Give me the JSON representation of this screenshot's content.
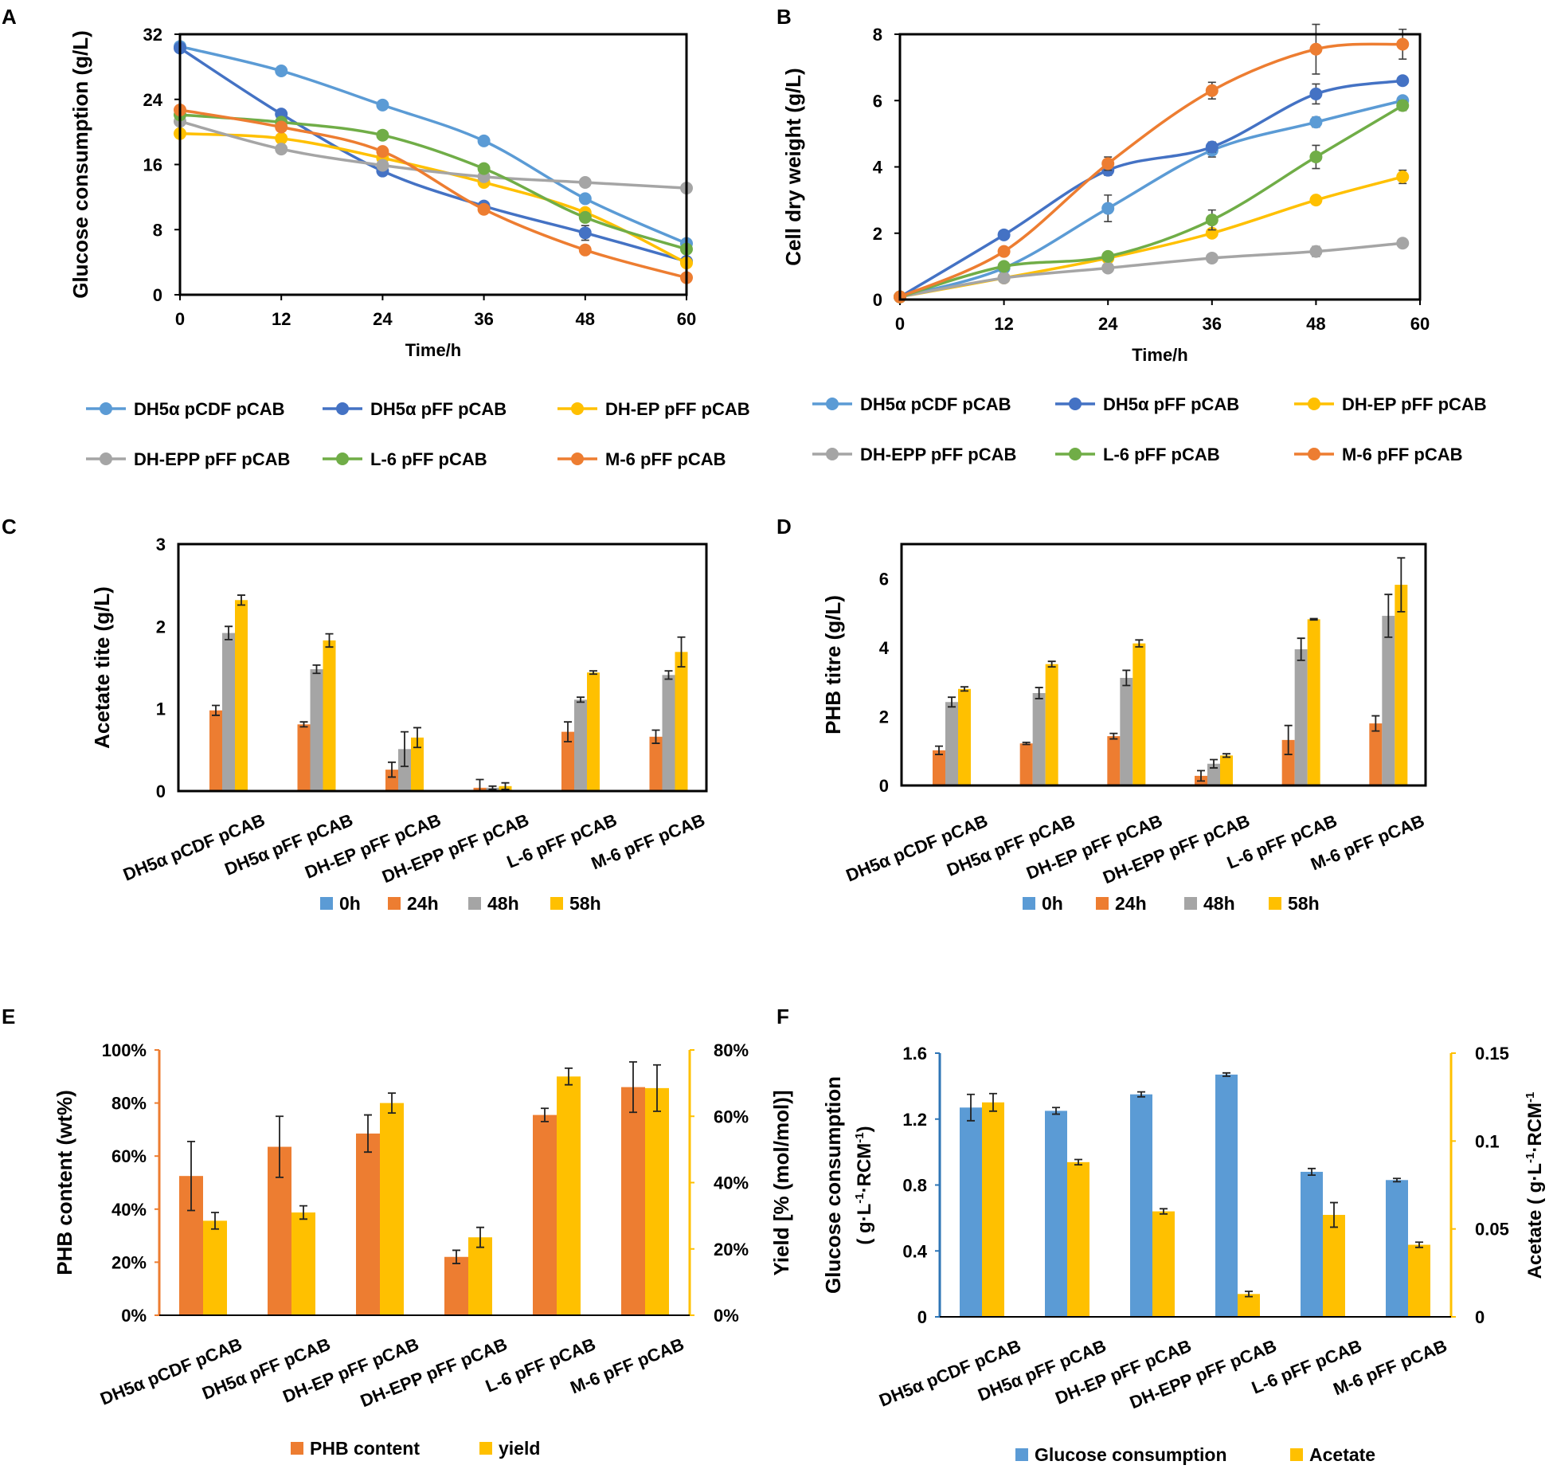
{
  "colors": {
    "blue_light": "#5B9BD5",
    "blue_dark": "#4472C4",
    "yellow": "#FFC000",
    "gray": "#A5A5A5",
    "green": "#70AD47",
    "orange": "#ED7D31",
    "bar_blue": "#5B9BD5",
    "bar_orange": "#ED7D31",
    "bar_gray": "#A5A5A5",
    "bar_yellow": "#FFC000",
    "axis_orange": "#ED7D31",
    "axis_yellow": "#FFC000",
    "axis_blue": "#2E75B6"
  },
  "chart_data": [
    {
      "panel": "A",
      "type": "line",
      "ylabel": "Glucose consumption (g/L)",
      "xlabel": "Time/h",
      "xlim": [
        0,
        60
      ],
      "ylim": [
        0,
        32
      ],
      "xticks": [
        "0",
        "12",
        "24",
        "36",
        "48",
        "60"
      ],
      "yticks": [
        "0",
        "8",
        "16",
        "24",
        "32"
      ],
      "x": [
        0,
        12,
        24,
        36,
        48,
        60
      ],
      "series": [
        {
          "name": "DH5α pCDF pCAB",
          "color": "#5B9BD5",
          "values": [
            30.5,
            27.5,
            23.3,
            18.9,
            11.8,
            6.3
          ],
          "errors": [
            0.4,
            0.3,
            0.3,
            0.4,
            0.4,
            0.4
          ]
        },
        {
          "name": "DH5α pFF pCAB",
          "color": "#4472C4",
          "values": [
            30.3,
            22.2,
            15.2,
            10.9,
            7.6,
            4.1
          ],
          "errors": [
            0.4,
            0.3,
            0.3,
            0.3,
            0.9,
            0.3
          ]
        },
        {
          "name": "DH-EP pFF pCAB",
          "color": "#FFC000",
          "values": [
            19.8,
            19.2,
            16.8,
            13.8,
            10.1,
            3.9
          ],
          "errors": [
            0.3,
            0.3,
            0.3,
            0.3,
            0.3,
            0.3
          ]
        },
        {
          "name": "DH-EPP pFF pCAB",
          "color": "#A5A5A5",
          "values": [
            21.3,
            17.9,
            15.9,
            14.5,
            13.8,
            13.1
          ],
          "errors": [
            0.3,
            0.3,
            0.3,
            0.3,
            0.3,
            0.3
          ]
        },
        {
          "name": "L-6 pFF pCAB",
          "color": "#70AD47",
          "values": [
            22.1,
            21.2,
            19.6,
            15.5,
            9.5,
            5.6
          ],
          "errors": [
            0.3,
            0.3,
            0.3,
            0.3,
            0.3,
            0.3
          ]
        },
        {
          "name": "M-6 pFF pCAB",
          "color": "#ED7D31",
          "values": [
            22.7,
            20.6,
            17.6,
            10.5,
            5.5,
            2.1
          ],
          "errors": [
            0.3,
            0.3,
            0.3,
            0.3,
            0.3,
            0.3
          ]
        }
      ]
    },
    {
      "panel": "B",
      "type": "line",
      "ylabel": "Cell dry weight (g/L)",
      "xlabel": "Time/h",
      "xlim": [
        0,
        60
      ],
      "ylim": [
        0,
        8
      ],
      "xticks": [
        "0",
        "12",
        "24",
        "36",
        "48",
        "60"
      ],
      "yticks": [
        "0",
        "2",
        "4",
        "6",
        "8"
      ],
      "x": [
        0,
        12,
        24,
        36,
        48,
        58
      ],
      "series": [
        {
          "name": "DH5α pCDF pCAB",
          "color": "#5B9BD5",
          "values": [
            0.08,
            0.95,
            2.75,
            4.5,
            5.35,
            6.0
          ],
          "errors": [
            0.05,
            0.08,
            0.4,
            0.2,
            0.15,
            0.12
          ]
        },
        {
          "name": "DH5α pFF pCAB",
          "color": "#4472C4",
          "values": [
            0.08,
            1.95,
            3.9,
            4.6,
            6.2,
            6.6
          ],
          "errors": [
            0.05,
            0.08,
            0.15,
            0.15,
            0.3,
            0.1
          ]
        },
        {
          "name": "DH-EP pFF pCAB",
          "color": "#FFC000",
          "values": [
            0.08,
            0.65,
            1.25,
            2.0,
            3.0,
            3.7
          ],
          "errors": [
            0.05,
            0.05,
            0.08,
            0.08,
            0.08,
            0.2
          ]
        },
        {
          "name": "DH-EPP pFF pCAB",
          "color": "#A5A5A5",
          "values": [
            0.08,
            0.65,
            0.95,
            1.25,
            1.45,
            1.7
          ],
          "errors": [
            0.05,
            0.05,
            0.08,
            0.08,
            0.15,
            0.1
          ]
        },
        {
          "name": "L-6 pFF pCAB",
          "color": "#70AD47",
          "values": [
            0.08,
            1.0,
            1.3,
            2.4,
            4.3,
            5.85
          ],
          "errors": [
            0.05,
            0.08,
            0.08,
            0.3,
            0.35,
            0.15
          ]
        },
        {
          "name": "M-6 pFF pCAB",
          "color": "#ED7D31",
          "values": [
            0.08,
            1.45,
            4.1,
            6.3,
            7.55,
            7.7
          ],
          "errors": [
            0.05,
            0.08,
            0.2,
            0.25,
            0.75,
            0.45
          ]
        }
      ]
    },
    {
      "panel": "C",
      "type": "bar",
      "ylabel": "Acetate tite (g/L)",
      "ylim": [
        0,
        3
      ],
      "yticks": [
        "0",
        "1",
        "2",
        "3"
      ],
      "categories": [
        "DH5α pCDF pCAB",
        "DH5α pFF pCAB",
        "DH-EP pFF pCAB",
        "DH-EPP pFF pCAB",
        "L-6 pFF pCAB",
        "M-6 pFF pCAB"
      ],
      "series": [
        {
          "name": "0h",
          "color": "#5B9BD5",
          "values": [
            0,
            0,
            0,
            0,
            0,
            0
          ],
          "errors": [
            0,
            0,
            0,
            0,
            0,
            0
          ]
        },
        {
          "name": "24h",
          "color": "#ED7D31",
          "values": [
            0.98,
            0.81,
            0.26,
            0.04,
            0.72,
            0.66
          ],
          "errors": [
            0.06,
            0.03,
            0.09,
            0.1,
            0.12,
            0.08
          ]
        },
        {
          "name": "48h",
          "color": "#A5A5A5",
          "values": [
            1.92,
            1.48,
            0.51,
            0.04,
            1.11,
            1.41
          ],
          "errors": [
            0.08,
            0.05,
            0.21,
            0.02,
            0.03,
            0.05
          ]
        },
        {
          "name": "58h",
          "color": "#FFC000",
          "values": [
            2.32,
            1.83,
            0.65,
            0.06,
            1.44,
            1.69
          ],
          "errors": [
            0.06,
            0.08,
            0.12,
            0.04,
            0.02,
            0.18
          ]
        }
      ]
    },
    {
      "panel": "D",
      "type": "bar",
      "ylabel": "PHB titre (g/L)",
      "ylim": [
        0,
        7
      ],
      "yticks": [
        "0",
        "2",
        "4",
        "6"
      ],
      "categories": [
        "DH5α pCDF pCAB",
        "DH5α pFF pCAB",
        "DH-EP pFF pCAB",
        "DH-EPP pFF pCAB",
        "L-6 pFF pCAB",
        "M-6 pFF pCAB"
      ],
      "series": [
        {
          "name": "0h",
          "color": "#5B9BD5",
          "values": [
            0,
            0,
            0,
            0,
            0,
            0
          ],
          "errors": [
            0,
            0,
            0,
            0,
            0,
            0
          ]
        },
        {
          "name": "24h",
          "color": "#ED7D31",
          "values": [
            1.02,
            1.22,
            1.43,
            0.28,
            1.32,
            1.8
          ],
          "errors": [
            0.12,
            0.03,
            0.08,
            0.15,
            0.42,
            0.22
          ]
        },
        {
          "name": "48h",
          "color": "#A5A5A5",
          "values": [
            2.42,
            2.68,
            3.12,
            0.63,
            3.95,
            4.92
          ],
          "errors": [
            0.14,
            0.16,
            0.22,
            0.12,
            0.32,
            0.62
          ]
        },
        {
          "name": "58h",
          "color": "#FFC000",
          "values": [
            2.8,
            3.52,
            4.12,
            0.87,
            4.82,
            5.82
          ],
          "errors": [
            0.06,
            0.08,
            0.1,
            0.05,
            0.02,
            0.78
          ]
        }
      ]
    },
    {
      "panel": "E",
      "type": "bar",
      "ylabel": "PHB content (wt%)",
      "ylabel_right": "Yield [% (mol/mol)]",
      "ylim": [
        0,
        100
      ],
      "ylim_right": [
        0,
        80
      ],
      "yticks": [
        "0%",
        "20%",
        "40%",
        "60%",
        "80%",
        "100%"
      ],
      "yticks_right": [
        "0%",
        "20%",
        "40%",
        "60%",
        "80%"
      ],
      "categories": [
        "DH5α pCDF pCAB",
        "DH5α pFF pCAB",
        "DH-EP pFF pCAB",
        "DH-EPP pFF pCAB",
        "L-6 pFF pCAB",
        "M-6 pFF pCAB"
      ],
      "series": [
        {
          "name": "PHB content",
          "color": "#ED7D31",
          "axis": "left",
          "values": [
            52.5,
            63.5,
            68.5,
            22,
            75.5,
            86
          ],
          "errors": [
            13,
            11.5,
            7,
            2.5,
            2.5,
            9.5
          ]
        },
        {
          "name": "yield",
          "color": "#FFC000",
          "axis": "right",
          "values": [
            28.5,
            31,
            64,
            23.5,
            72,
            68.5
          ],
          "errors": [
            2.5,
            2,
            3,
            3,
            2.5,
            7
          ]
        }
      ]
    },
    {
      "panel": "F",
      "type": "bar",
      "ylabel": "Glucose consumption",
      "ylabel_line2": "( g·L",
      "ylabel_right": "Acetate ( g·L",
      "ylim": [
        0,
        1.6
      ],
      "ylim_right": [
        0,
        0.15
      ],
      "yticks": [
        "0",
        "0.4",
        "0.8",
        "1.2",
        "1.6"
      ],
      "yticks_right": [
        "0",
        "0.05",
        "0.1",
        "0.15"
      ],
      "categories": [
        "DH5α pCDF pCAB",
        "DH5α pFF pCAB",
        "DH-EP pFF pCAB",
        "DH-EPP pFF pCAB",
        "L-6 pFF pCAB",
        "M-6 pFF pCAB"
      ],
      "series": [
        {
          "name": "Glucose consumption",
          "color": "#5B9BD5",
          "axis": "left",
          "values": [
            1.27,
            1.25,
            1.35,
            1.47,
            0.88,
            0.83
          ],
          "errors": [
            0.08,
            0.02,
            0.015,
            0.01,
            0.02,
            0.01
          ]
        },
        {
          "name": "Acetate",
          "color": "#FFC000",
          "axis": "right",
          "values": [
            0.122,
            0.088,
            0.06,
            0.013,
            0.058,
            0.041
          ],
          "errors": [
            0.005,
            0.0015,
            0.0015,
            0.0015,
            0.007,
            0.0015
          ]
        }
      ]
    }
  ],
  "panels": {
    "A": {
      "letter": "A"
    },
    "B": {
      "letter": "B"
    },
    "C": {
      "letter": "C"
    },
    "D": {
      "letter": "D"
    },
    "E": {
      "letter": "E"
    },
    "F": {
      "letter": "F"
    }
  },
  "units": {
    "sup_minus1": "-1",
    "rcm": "·RCM",
    "close": ")"
  }
}
